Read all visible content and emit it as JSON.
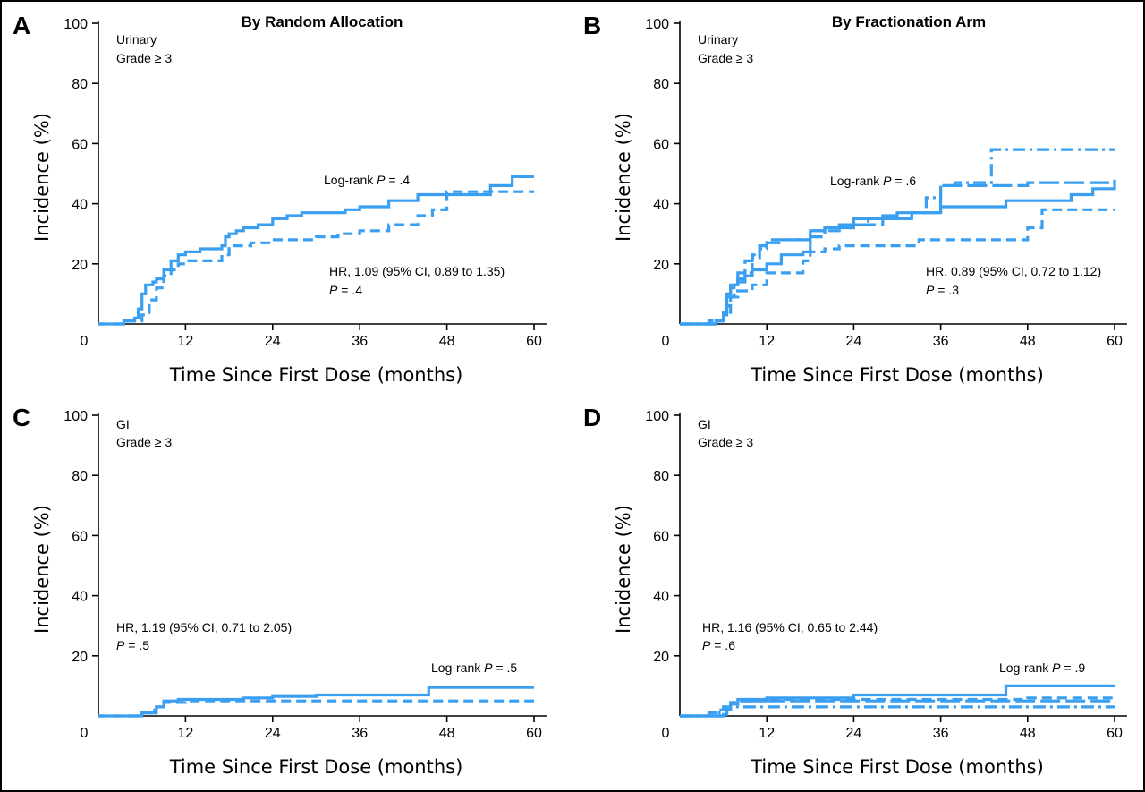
{
  "chart_data": [
    {
      "panel": "A",
      "title": "By Random Allocation",
      "type": "line",
      "subtitle_lines": [
        "Urinary",
        "Grade ≥ 3"
      ],
      "xlabel": "Time Since First Dose (months)",
      "ylabel": "Incidence (%)",
      "xlim": [
        0,
        60
      ],
      "ylim": [
        0,
        100
      ],
      "xticks": [
        "0",
        "12",
        "24",
        "36",
        "48",
        "60"
      ],
      "yticks": [
        "20",
        "40",
        "60",
        "80",
        "100"
      ],
      "annotations": {
        "logrank": {
          "prefix": "Log-rank ",
          "p": "P",
          "suffix": " = .4"
        },
        "hr": {
          "line1": "HR, 1.09 (95% CI, 0.89 to 1.35)",
          "p": "P",
          "line2_suffix": " = .4"
        }
      },
      "series": [
        {
          "style": "solid",
          "color": "#3a9ff0",
          "x": [
            0,
            3.5,
            5,
            5.5,
            6,
            6.5,
            7.5,
            8,
            9,
            10,
            11,
            12,
            14,
            17,
            17.5,
            18,
            19,
            20,
            22,
            24,
            26,
            28,
            30,
            34,
            36,
            40,
            44,
            48,
            54,
            57,
            60
          ],
          "y": [
            0,
            1,
            2,
            5,
            10,
            13,
            14,
            15,
            18,
            21,
            23,
            24,
            25,
            26,
            29,
            30,
            31,
            32,
            33,
            35,
            36,
            37,
            37,
            38,
            39,
            41,
            43,
            43,
            46,
            49,
            49
          ]
        },
        {
          "style": "dashed",
          "color": "#3a9ff0",
          "x": [
            0,
            4,
            6,
            7,
            8,
            9,
            10,
            11,
            12,
            17,
            18,
            21,
            24,
            26,
            28,
            30,
            33,
            36,
            40,
            44,
            46,
            48,
            60
          ],
          "y": [
            0,
            1,
            3,
            8,
            12,
            16,
            18,
            20,
            21,
            23,
            26,
            27,
            28,
            28,
            28,
            29,
            30,
            31,
            33,
            36,
            38,
            44,
            44
          ]
        }
      ]
    },
    {
      "panel": "B",
      "title": "By Fractionation Arm",
      "type": "line",
      "subtitle_lines": [
        "Urinary",
        "Grade ≥ 3"
      ],
      "xlabel": "Time Since First Dose (months)",
      "ylabel": "Incidence (%)",
      "xlim": [
        0,
        60
      ],
      "ylim": [
        0,
        100
      ],
      "xticks": [
        "0",
        "12",
        "24",
        "36",
        "48",
        "60"
      ],
      "yticks": [
        "20",
        "40",
        "60",
        "80",
        "100"
      ],
      "annotations": {
        "logrank": {
          "prefix": "Log-rank ",
          "p": "P",
          "suffix": " = .6"
        },
        "hr": {
          "line1": "HR, 0.89 (95% CI, 0.72 to 1.12)",
          "p": "P",
          "line2_suffix": " = .3"
        }
      },
      "series": [
        {
          "style": "solid",
          "color": "#3a9ff0",
          "x": [
            0,
            5,
            6,
            6.5,
            7,
            8,
            9,
            10,
            12,
            14,
            17,
            18,
            20,
            22,
            24,
            28,
            30,
            33,
            36,
            45,
            48,
            54,
            57,
            60
          ],
          "y": [
            0,
            1,
            4,
            10,
            13,
            14,
            16,
            18,
            20,
            23,
            24,
            31,
            32,
            33,
            35,
            36,
            37,
            37,
            39,
            41,
            41,
            43,
            45,
            48
          ]
        },
        {
          "style": "dashed",
          "color": "#3a9ff0",
          "x": [
            0,
            5,
            6,
            7,
            8,
            10,
            12,
            17,
            18,
            20,
            22,
            24,
            28,
            33,
            36,
            42,
            48,
            50,
            60
          ],
          "y": [
            0,
            1,
            3,
            9,
            11,
            13,
            17,
            21,
            24,
            25,
            26,
            26,
            26,
            28,
            28,
            28,
            32,
            38,
            38
          ]
        },
        {
          "style": "dashdot",
          "color": "#3a9ff0",
          "x": [
            0,
            4,
            6,
            6.5,
            7,
            7.5,
            8,
            9,
            10,
            11,
            12,
            14,
            17,
            18,
            20,
            22,
            24,
            26,
            30,
            32,
            34,
            36,
            38,
            42,
            43,
            50,
            60
          ],
          "y": [
            0,
            1,
            3,
            6,
            9,
            11,
            15,
            17,
            22,
            25,
            27,
            28,
            28,
            29,
            31,
            32,
            33,
            35,
            35,
            37,
            42,
            46,
            47,
            47,
            58,
            58,
            58
          ]
        },
        {
          "style": "longdash",
          "color": "#3a9ff0",
          "x": [
            0,
            5,
            6,
            6.5,
            7,
            7.5,
            8,
            9,
            10,
            11,
            12,
            14,
            16,
            18,
            20,
            24,
            28,
            32,
            36,
            40,
            48,
            54,
            58,
            60
          ],
          "y": [
            0,
            1,
            4,
            9,
            12,
            14,
            17,
            21,
            23,
            26,
            28,
            28,
            28,
            31,
            32,
            33,
            35,
            37,
            46,
            46,
            47,
            47,
            47,
            47
          ]
        }
      ]
    },
    {
      "panel": "C",
      "type": "line",
      "subtitle_lines": [
        "GI",
        "Grade ≥ 3"
      ],
      "xlabel": "Time Since First Dose (months)",
      "ylabel": "Incidence (%)",
      "xlim": [
        0,
        60
      ],
      "ylim": [
        0,
        100
      ],
      "xticks": [
        "0",
        "12",
        "24",
        "36",
        "48",
        "60"
      ],
      "yticks": [
        "20",
        "40",
        "60",
        "80",
        "100"
      ],
      "annotations": {
        "logrank": {
          "prefix": "Log-rank ",
          "p": "P",
          "suffix": " = .5"
        },
        "hr": {
          "line1": "HR, 1.19 (95% CI, 0.71 to 2.05)",
          "p": "P",
          "line2_suffix": " = .5"
        }
      },
      "series": [
        {
          "style": "solid",
          "color": "#3a9ff0",
          "x": [
            0,
            6,
            8,
            9,
            11,
            14,
            20,
            24,
            30,
            36,
            42,
            45.5,
            48,
            54,
            60
          ],
          "y": [
            0,
            1,
            3,
            5,
            5.5,
            5.5,
            6,
            6.5,
            7,
            7,
            7,
            9.5,
            9.5,
            9.5,
            9.5
          ]
        },
        {
          "style": "dashed",
          "color": "#3a9ff0",
          "x": [
            0,
            6,
            7,
            8,
            9,
            12,
            20,
            30,
            40,
            48,
            54,
            60
          ],
          "y": [
            0,
            1,
            2,
            3,
            4.5,
            5,
            5,
            5,
            5,
            5,
            5,
            5
          ]
        }
      ]
    },
    {
      "panel": "D",
      "type": "line",
      "subtitle_lines": [
        "GI",
        "Grade ≥ 3"
      ],
      "xlabel": "Time Since First Dose (months)",
      "ylabel": "Incidence (%)",
      "xlim": [
        0,
        60
      ],
      "ylim": [
        0,
        100
      ],
      "xticks": [
        "0",
        "12",
        "24",
        "36",
        "48",
        "60"
      ],
      "yticks": [
        "20",
        "40",
        "60",
        "80",
        "100"
      ],
      "annotations": {
        "logrank": {
          "prefix": "Log-rank ",
          "p": "P",
          "suffix": " = .9"
        },
        "hr": {
          "line1": "HR, 1.16 (95% CI, 0.65 to 2.44)",
          "p": "P",
          "line2_suffix": " = .6"
        }
      },
      "series": [
        {
          "style": "solid",
          "color": "#3a9ff0",
          "x": [
            0,
            6,
            6.5,
            7,
            8,
            12,
            20,
            24,
            30,
            36,
            42,
            45,
            48,
            54,
            60
          ],
          "y": [
            0,
            0.5,
            2,
            4,
            5.5,
            6,
            6,
            7,
            7,
            7,
            7,
            10,
            10,
            10,
            10
          ]
        },
        {
          "style": "dashed",
          "color": "#3a9ff0",
          "x": [
            0,
            4,
            5,
            6,
            7,
            8,
            12,
            20,
            30,
            40,
            48,
            54,
            60
          ],
          "y": [
            0,
            1,
            2,
            3,
            4,
            5,
            5.5,
            5.5,
            5.5,
            5.5,
            6,
            6,
            6
          ]
        },
        {
          "style": "dashdot",
          "color": "#3a9ff0",
          "x": [
            0,
            5,
            6,
            7,
            8,
            10,
            12,
            20,
            30,
            40,
            48,
            54,
            60
          ],
          "y": [
            0,
            1,
            2,
            3,
            3,
            3,
            3,
            3,
            3,
            3,
            3,
            3,
            3
          ]
        },
        {
          "style": "longdash",
          "color": "#3a9ff0",
          "x": [
            0,
            6,
            6.5,
            7,
            8,
            10,
            12,
            20,
            30,
            40,
            48,
            54,
            60
          ],
          "y": [
            0,
            1,
            3,
            4.5,
            5,
            5,
            5,
            5,
            5,
            5,
            5,
            5,
            5
          ]
        }
      ]
    }
  ]
}
